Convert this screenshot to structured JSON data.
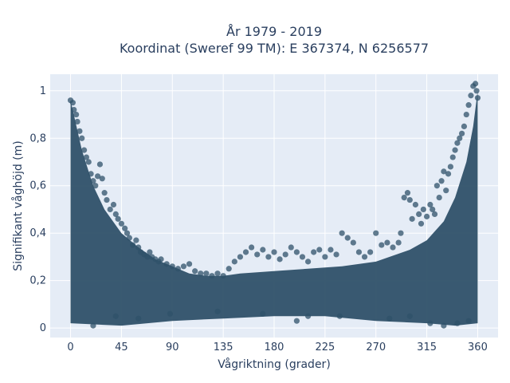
{
  "chart_data": {
    "type": "scatter",
    "title": "År 1979 - 2019",
    "subtitle": "Koordinat (Sweref 99 TM): E 367374, N 6256577",
    "xlabel": "Vågriktning (grader)",
    "ylabel": "Signifikant våghöjd (m)",
    "xlim": [
      -18,
      378
    ],
    "ylim": [
      -0.04,
      1.07
    ],
    "xticks": [
      0,
      45,
      90,
      135,
      180,
      225,
      270,
      315,
      360
    ],
    "yticks": [
      {
        "value": 0,
        "label": "0"
      },
      {
        "value": 0.2,
        "label": "0,2"
      },
      {
        "value": 0.4,
        "label": "0,4"
      },
      {
        "value": 0.6,
        "label": "0,6"
      },
      {
        "value": 0.8,
        "label": "0,8"
      },
      {
        "value": 1.0,
        "label": "1"
      }
    ],
    "grid": true,
    "marker_color": "#2f5169",
    "plot_background": "#e5ecf6",
    "density_envelope": {
      "lower": [
        [
          0,
          0.02
        ],
        [
          45,
          0.01
        ],
        [
          90,
          0.03
        ],
        [
          135,
          0.04
        ],
        [
          180,
          0.05
        ],
        [
          225,
          0.05
        ],
        [
          270,
          0.03
        ],
        [
          315,
          0.02
        ],
        [
          340,
          0.01
        ],
        [
          360,
          0.02
        ]
      ],
      "upper": [
        [
          0,
          0.96
        ],
        [
          10,
          0.75
        ],
        [
          20,
          0.6
        ],
        [
          30,
          0.5
        ],
        [
          45,
          0.4
        ],
        [
          60,
          0.34
        ],
        [
          75,
          0.29
        ],
        [
          90,
          0.26
        ],
        [
          105,
          0.23
        ],
        [
          120,
          0.22
        ],
        [
          135,
          0.22
        ],
        [
          150,
          0.23
        ],
        [
          180,
          0.24
        ],
        [
          210,
          0.25
        ],
        [
          240,
          0.26
        ],
        [
          270,
          0.28
        ],
        [
          300,
          0.33
        ],
        [
          315,
          0.37
        ],
        [
          330,
          0.45
        ],
        [
          340,
          0.55
        ],
        [
          350,
          0.7
        ],
        [
          356,
          0.85
        ],
        [
          360,
          1.0
        ]
      ]
    },
    "points": [
      [
        0,
        0.96
      ],
      [
        2,
        0.95
      ],
      [
        3,
        0.92
      ],
      [
        5,
        0.9
      ],
      [
        6,
        0.87
      ],
      [
        8,
        0.83
      ],
      [
        10,
        0.8
      ],
      [
        12,
        0.75
      ],
      [
        14,
        0.72
      ],
      [
        16,
        0.7
      ],
      [
        18,
        0.65
      ],
      [
        20,
        0.62
      ],
      [
        22,
        0.6
      ],
      [
        24,
        0.64
      ],
      [
        26,
        0.69
      ],
      [
        28,
        0.63
      ],
      [
        30,
        0.57
      ],
      [
        32,
        0.54
      ],
      [
        35,
        0.5
      ],
      [
        38,
        0.52
      ],
      [
        40,
        0.48
      ],
      [
        42,
        0.46
      ],
      [
        45,
        0.44
      ],
      [
        48,
        0.42
      ],
      [
        50,
        0.4
      ],
      [
        52,
        0.38
      ],
      [
        55,
        0.35
      ],
      [
        58,
        0.37
      ],
      [
        60,
        0.34
      ],
      [
        62,
        0.32
      ],
      [
        65,
        0.31
      ],
      [
        68,
        0.3
      ],
      [
        70,
        0.32
      ],
      [
        72,
        0.3
      ],
      [
        75,
        0.29
      ],
      [
        78,
        0.28
      ],
      [
        80,
        0.29
      ],
      [
        85,
        0.27
      ],
      [
        90,
        0.26
      ],
      [
        95,
        0.25
      ],
      [
        100,
        0.26
      ],
      [
        105,
        0.27
      ],
      [
        110,
        0.24
      ],
      [
        115,
        0.23
      ],
      [
        120,
        0.23
      ],
      [
        125,
        0.22
      ],
      [
        130,
        0.23
      ],
      [
        135,
        0.22
      ],
      [
        140,
        0.25
      ],
      [
        145,
        0.28
      ],
      [
        150,
        0.3
      ],
      [
        155,
        0.32
      ],
      [
        160,
        0.34
      ],
      [
        165,
        0.31
      ],
      [
        170,
        0.33
      ],
      [
        175,
        0.3
      ],
      [
        180,
        0.32
      ],
      [
        185,
        0.29
      ],
      [
        190,
        0.31
      ],
      [
        195,
        0.34
      ],
      [
        200,
        0.32
      ],
      [
        205,
        0.3
      ],
      [
        210,
        0.28
      ],
      [
        215,
        0.32
      ],
      [
        220,
        0.33
      ],
      [
        225,
        0.3
      ],
      [
        230,
        0.33
      ],
      [
        235,
        0.31
      ],
      [
        240,
        0.4
      ],
      [
        245,
        0.38
      ],
      [
        250,
        0.36
      ],
      [
        255,
        0.32
      ],
      [
        260,
        0.3
      ],
      [
        265,
        0.32
      ],
      [
        270,
        0.4
      ],
      [
        275,
        0.35
      ],
      [
        280,
        0.36
      ],
      [
        285,
        0.34
      ],
      [
        290,
        0.36
      ],
      [
        292,
        0.4
      ],
      [
        295,
        0.55
      ],
      [
        298,
        0.57
      ],
      [
        300,
        0.54
      ],
      [
        302,
        0.46
      ],
      [
        305,
        0.52
      ],
      [
        308,
        0.48
      ],
      [
        310,
        0.44
      ],
      [
        312,
        0.5
      ],
      [
        315,
        0.47
      ],
      [
        318,
        0.52
      ],
      [
        320,
        0.5
      ],
      [
        322,
        0.48
      ],
      [
        324,
        0.6
      ],
      [
        326,
        0.55
      ],
      [
        328,
        0.62
      ],
      [
        330,
        0.66
      ],
      [
        332,
        0.58
      ],
      [
        334,
        0.65
      ],
      [
        336,
        0.68
      ],
      [
        338,
        0.72
      ],
      [
        340,
        0.75
      ],
      [
        342,
        0.78
      ],
      [
        344,
        0.8
      ],
      [
        346,
        0.82
      ],
      [
        348,
        0.85
      ],
      [
        350,
        0.9
      ],
      [
        352,
        0.94
      ],
      [
        354,
        0.98
      ],
      [
        356,
        1.02
      ],
      [
        358,
        1.03
      ],
      [
        359,
        1.0
      ],
      [
        360,
        0.97
      ],
      [
        40,
        0.05
      ],
      [
        88,
        0.06
      ],
      [
        130,
        0.07
      ],
      [
        170,
        0.06
      ],
      [
        210,
        0.05
      ],
      [
        238,
        0.05
      ],
      [
        282,
        0.04
      ],
      [
        300,
        0.05
      ],
      [
        318,
        0.02
      ],
      [
        330,
        0.01
      ],
      [
        342,
        0.02
      ],
      [
        352,
        0.03
      ],
      [
        200,
        0.03
      ],
      [
        60,
        0.04
      ],
      [
        20,
        0.01
      ]
    ]
  }
}
